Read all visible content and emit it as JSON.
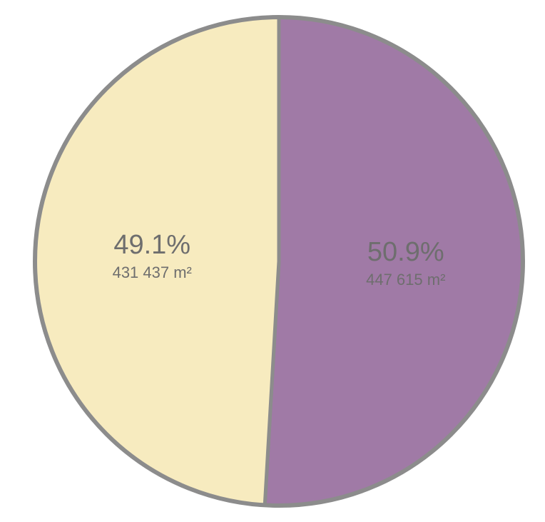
{
  "chart_data": {
    "type": "pie",
    "title": "",
    "slices": [
      {
        "percent_label": "49.1%",
        "area_label": "431 437 m²",
        "value": 431437,
        "color": "#f7ebbf"
      },
      {
        "percent_label": "50.9%",
        "area_label": "447 615 m²",
        "value": 447615,
        "color": "#a07aa6"
      }
    ],
    "outline_color": "#8c8c8c",
    "legend": "none"
  }
}
